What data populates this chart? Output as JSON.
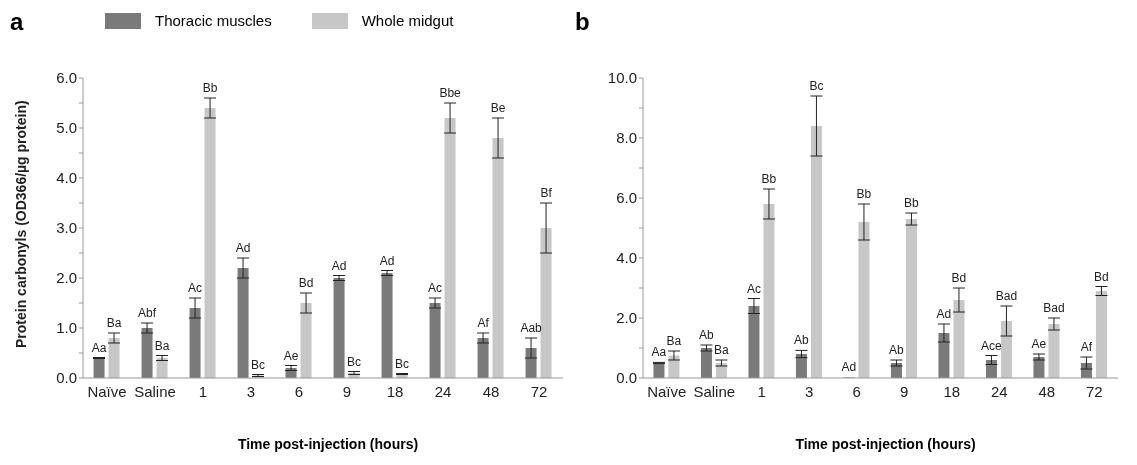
{
  "chart_data": [
    {
      "type": "bar",
      "title": "a",
      "xlabel": "Time post-injection (hours)",
      "ylabel": "Protein carbonyls (OD366/µg protein)",
      "categories": [
        "Naïve",
        "Saline",
        "1",
        "3",
        "6",
        "9",
        "18",
        "24",
        "48",
        "72"
      ],
      "series": [
        {
          "name": "Thoracic muscles",
          "color": "#7a7a7a",
          "values": [
            0.4,
            1.0,
            1.4,
            2.2,
            0.2,
            2.0,
            2.1,
            1.5,
            0.8,
            0.6
          ],
          "errors": [
            0.01,
            0.1,
            0.2,
            0.2,
            0.05,
            0.05,
            0.05,
            0.1,
            0.1,
            0.2
          ],
          "value_labels": [
            "Aa",
            "Abf",
            "Ac",
            "Ad",
            "Ae",
            "Ad",
            "Ad",
            "Ac",
            "Af",
            "Aab"
          ]
        },
        {
          "name": "Whole midgut",
          "color": "#c6c7c6",
          "values": [
            0.8,
            0.4,
            5.4,
            0.05,
            1.5,
            0.1,
            0.08,
            5.2,
            4.8,
            3.0
          ],
          "errors": [
            0.1,
            0.05,
            0.2,
            0.02,
            0.2,
            0.03,
            0.01,
            0.3,
            0.4,
            0.5
          ],
          "value_labels": [
            "Ba",
            "Ba",
            "Bb",
            "Bc",
            "Bd",
            "Bc",
            "Bc",
            "Bbe",
            "Be",
            "Bf"
          ]
        }
      ],
      "ylim": [
        0,
        6
      ],
      "yticks": [
        {
          "value": 0,
          "label": "0.0"
        },
        {
          "value": 0.5,
          "label": null
        },
        {
          "value": 1,
          "label": "1.0"
        },
        {
          "value": 1.5,
          "label": null
        },
        {
          "value": 2,
          "label": "2.0"
        },
        {
          "value": 2.5,
          "label": null
        },
        {
          "value": 3,
          "label": "3.0"
        },
        {
          "value": 3.5,
          "label": null
        },
        {
          "value": 4,
          "label": "4.0"
        },
        {
          "value": 4.5,
          "label": null
        },
        {
          "value": 5,
          "label": "5.0"
        },
        {
          "value": 5.5,
          "label": null
        },
        {
          "value": 6,
          "label": "6.0"
        }
      ],
      "legend": "top"
    },
    {
      "type": "bar",
      "title": "b",
      "xlabel": "Time post-injection (hours)",
      "categories": [
        "Naïve",
        "Saline",
        "1",
        "3",
        "6",
        "9",
        "18",
        "24",
        "48",
        "72"
      ],
      "series": [
        {
          "color": "#7a7a7a",
          "values": [
            0.5,
            1.0,
            2.4,
            0.8,
            0.02,
            0.5,
            1.5,
            0.6,
            0.7,
            0.5
          ],
          "errors": [
            0.02,
            0.1,
            0.25,
            0.12,
            null,
            0.1,
            0.3,
            0.15,
            0.1,
            0.2
          ],
          "value_labels": [
            "Aa",
            "Ab",
            "Ac",
            "Ab",
            "Ad",
            "Ab",
            "Ad",
            "Ace",
            "Ae",
            "Af"
          ]
        },
        {
          "color": "#c6c7c6",
          "values": [
            0.75,
            0.5,
            5.8,
            8.4,
            5.2,
            5.3,
            2.6,
            1.9,
            1.8,
            2.9
          ],
          "errors": [
            0.15,
            0.1,
            0.5,
            1.0,
            0.6,
            0.2,
            0.4,
            0.5,
            0.2,
            0.15
          ],
          "value_labels": [
            "Ba",
            "Ba",
            "Bb",
            "Bc",
            "Bb",
            "Bb",
            "Bd",
            "Bad",
            "Bad",
            "Bd"
          ]
        }
      ],
      "ylim": [
        0,
        10
      ],
      "yticks": [
        {
          "value": 0,
          "label": "0.0"
        },
        {
          "value": 1,
          "label": null
        },
        {
          "value": 2,
          "label": "2.0"
        },
        {
          "value": 3,
          "label": null
        },
        {
          "value": 4,
          "label": "4.0"
        },
        {
          "value": 5,
          "label": null
        },
        {
          "value": 6,
          "label": "6.0"
        },
        {
          "value": 7,
          "label": null
        },
        {
          "value": 8,
          "label": "8.0"
        },
        {
          "value": 9,
          "label": null
        },
        {
          "value": 10,
          "label": "10.0"
        }
      ]
    }
  ]
}
